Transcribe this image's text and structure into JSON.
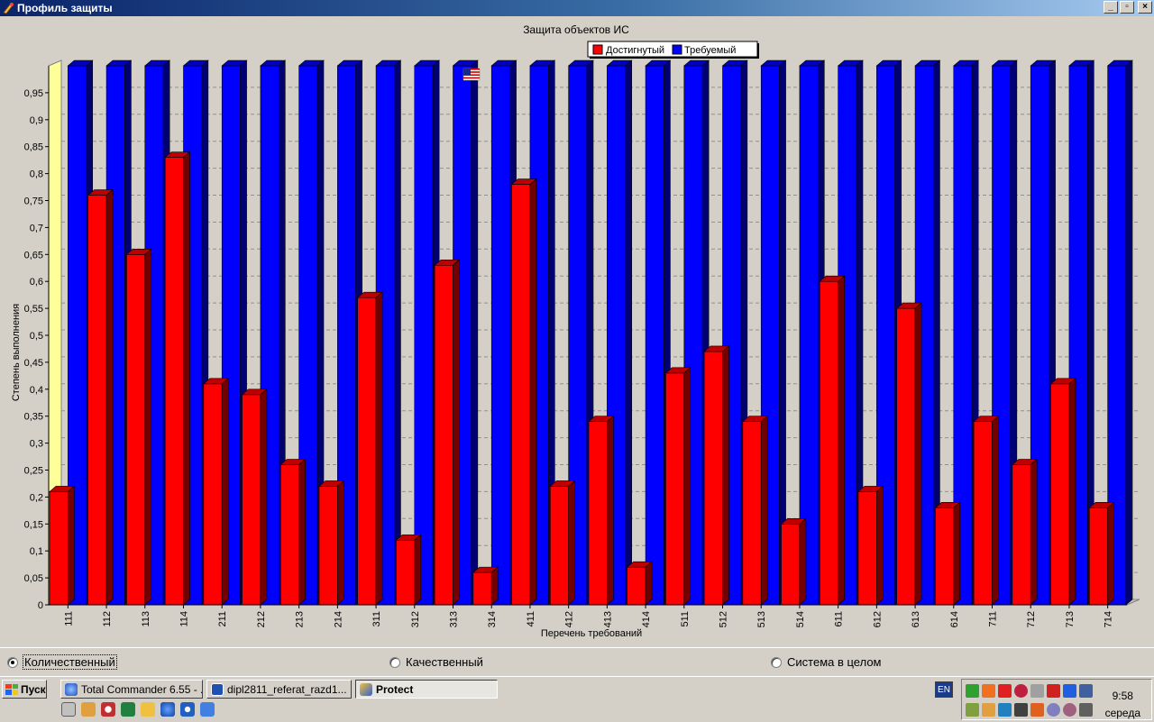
{
  "window": {
    "title": "Профиль защиты",
    "btn_min": "_",
    "btn_max": "▫",
    "btn_close": "×"
  },
  "chart_data": {
    "type": "bar",
    "title": "Защита объектов ИС",
    "xlabel": "Перечень требований",
    "ylabel": "Степень выполнения",
    "ylim": [
      0,
      1
    ],
    "yticks": [
      "0",
      "0,05",
      "0,1",
      "0,15",
      "0,2",
      "0,25",
      "0,3",
      "0,35",
      "0,4",
      "0,45",
      "0,5",
      "0,55",
      "0,6",
      "0,65",
      "0,7",
      "0,75",
      "0,8",
      "0,85",
      "0,9",
      "0,95"
    ],
    "categories": [
      "111",
      "112",
      "113",
      "114",
      "211",
      "212",
      "213",
      "214",
      "311",
      "312",
      "313",
      "314",
      "411",
      "412",
      "413",
      "414",
      "511",
      "512",
      "513",
      "514",
      "611",
      "612",
      "613",
      "614",
      "711",
      "712",
      "713",
      "714"
    ],
    "series": [
      {
        "name": "Достигнутый",
        "color": "#ff0000",
        "values": [
          0.21,
          0.76,
          0.65,
          0.83,
          0.41,
          0.39,
          0.26,
          0.22,
          0.57,
          0.12,
          0.63,
          0.06,
          0.78,
          0.22,
          0.34,
          0.07,
          0.43,
          0.47,
          0.34,
          0.15,
          0.6,
          0.21,
          0.55,
          0.18,
          0.34,
          0.26,
          0.41,
          0.18
        ]
      },
      {
        "name": "Требуемый",
        "color": "#0000ff",
        "values": [
          1,
          1,
          1,
          1,
          1,
          1,
          1,
          1,
          1,
          1,
          1,
          1,
          1,
          1,
          1,
          1,
          1,
          1,
          1,
          1,
          1,
          1,
          1,
          1,
          1,
          1,
          1,
          1
        ]
      }
    ],
    "grid": true,
    "legend_position": "top-center"
  },
  "mode_panel": {
    "options": [
      {
        "label": "Количественный",
        "checked": true
      },
      {
        "label": "Качественный",
        "checked": false
      },
      {
        "label": "Система в целом",
        "checked": false
      }
    ]
  },
  "taskbar": {
    "start_label": "Пуск",
    "tasks": [
      {
        "label": "Total Commander 6.55 - ...",
        "active": false
      },
      {
        "label": "dipl2811_referat_razd1...",
        "active": false
      },
      {
        "label": "Protect",
        "active": true
      }
    ],
    "language": "EN",
    "clock_time": "9:58",
    "clock_day": "середа"
  },
  "colors": {
    "titlebar_start": "#0a246a",
    "achieved": "#ff0000",
    "required": "#0000ff",
    "panel_bg": "#d4d0c8"
  }
}
